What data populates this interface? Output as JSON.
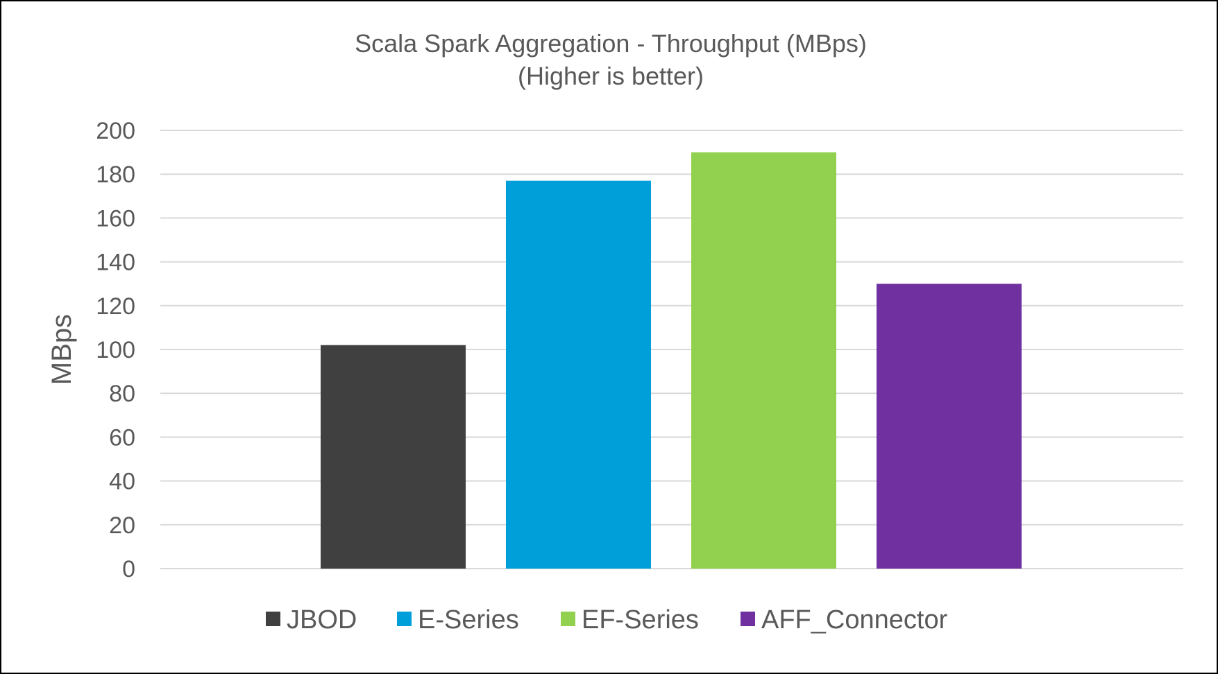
{
  "chart_data": {
    "type": "bar",
    "title": "Scala Spark Aggregation - Throughput (MBps)",
    "subtitle": "(Higher is better)",
    "ylabel": "MBps",
    "xlabel": "",
    "ylim": [
      0,
      200
    ],
    "yticks": [
      0,
      20,
      40,
      60,
      80,
      100,
      120,
      140,
      160,
      180,
      200
    ],
    "grid": true,
    "legend_position": "bottom",
    "series": [
      {
        "name": "JBOD",
        "values": [
          102
        ],
        "color": "#404040"
      },
      {
        "name": "E-Series",
        "values": [
          177
        ],
        "color": "#009FDA"
      },
      {
        "name": "EF-Series",
        "values": [
          190
        ],
        "color": "#92D050"
      },
      {
        "name": "AFF_Connector",
        "values": [
          130
        ],
        "color": "#7030A0"
      }
    ]
  }
}
